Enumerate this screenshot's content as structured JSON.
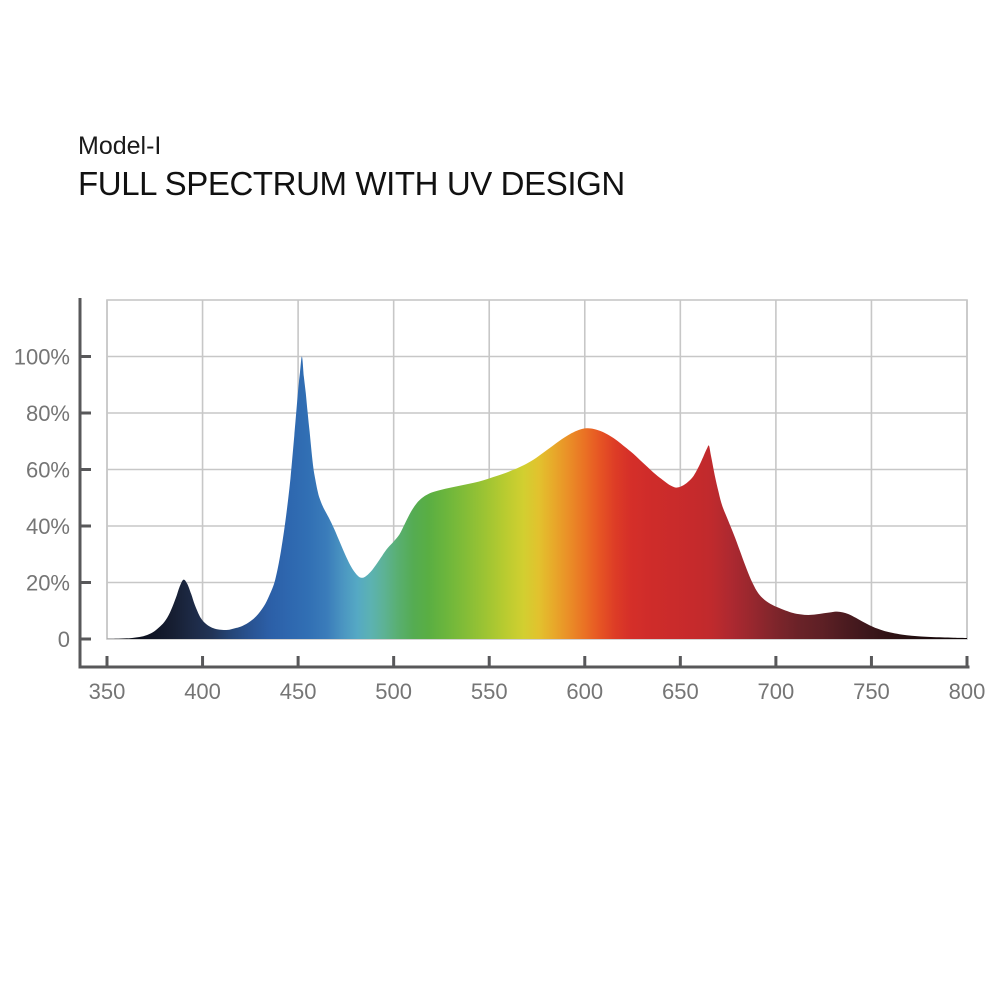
{
  "header": {
    "model": "Model-I",
    "title": "FULL SPECTRUM WITH UV DESIGN"
  },
  "chart_data": {
    "type": "area",
    "title": "FULL SPECTRUM WITH UV DESIGN",
    "subtitle_model": "Model-I",
    "xlabel": "",
    "ylabel": "",
    "grid": true,
    "legend": "none",
    "x_range": [
      350,
      800
    ],
    "y_range": [
      0,
      120
    ],
    "x_ticks": [
      350,
      400,
      450,
      500,
      550,
      600,
      650,
      700,
      750,
      800
    ],
    "x_tick_labels": [
      "350",
      "400",
      "450",
      "500",
      "550",
      "600",
      "650",
      "700",
      "750",
      "800"
    ],
    "y_tick_values": [
      0,
      20,
      40,
      60,
      80,
      100
    ],
    "y_tick_labels": [
      "0",
      "20%",
      "40%",
      "60%",
      "80%",
      "100%"
    ],
    "y_grid_values": [
      20,
      40,
      60,
      80,
      100
    ],
    "series": [
      {
        "name": "spectrum",
        "points": [
          [
            350,
            0.05
          ],
          [
            356,
            0.1
          ],
          [
            362,
            0.3
          ],
          [
            366,
            0.6
          ],
          [
            370,
            1.2
          ],
          [
            374,
            2.4
          ],
          [
            377,
            4
          ],
          [
            380,
            6
          ],
          [
            383,
            9.5
          ],
          [
            386,
            14.5
          ],
          [
            388,
            18.5
          ],
          [
            390,
            21
          ],
          [
            392,
            19.5
          ],
          [
            394,
            16
          ],
          [
            396,
            12
          ],
          [
            399,
            7.5
          ],
          [
            402,
            5.2
          ],
          [
            405,
            4
          ],
          [
            408,
            3.4
          ],
          [
            411,
            3.2
          ],
          [
            414,
            3.3
          ],
          [
            417,
            3.8
          ],
          [
            420,
            4.4
          ],
          [
            424,
            5.8
          ],
          [
            428,
            8
          ],
          [
            432,
            11.5
          ],
          [
            435,
            15.5
          ],
          [
            438,
            21
          ],
          [
            441,
            31
          ],
          [
            444,
            45
          ],
          [
            446,
            57
          ],
          [
            448,
            72
          ],
          [
            450,
            88
          ],
          [
            451,
            94.5
          ],
          [
            452,
            100
          ],
          [
            453,
            93
          ],
          [
            454,
            87
          ],
          [
            455,
            80
          ],
          [
            456,
            73.5
          ],
          [
            457,
            66.5
          ],
          [
            458,
            60.5
          ],
          [
            459,
            56.5
          ],
          [
            460,
            53
          ],
          [
            461,
            50.3
          ],
          [
            463,
            46.8
          ],
          [
            466,
            43
          ],
          [
            469,
            38.8
          ],
          [
            472,
            34
          ],
          [
            475,
            29.3
          ],
          [
            478,
            25.3
          ],
          [
            481,
            22.5
          ],
          [
            483,
            21.7
          ],
          [
            485,
            22
          ],
          [
            488,
            23.8
          ],
          [
            491,
            26.5
          ],
          [
            494,
            29.5
          ],
          [
            497,
            32.3
          ],
          [
            500,
            34.5
          ],
          [
            503,
            37
          ],
          [
            506,
            41
          ],
          [
            509,
            45
          ],
          [
            512,
            48
          ],
          [
            515,
            50
          ],
          [
            518,
            51.3
          ],
          [
            522,
            52.3
          ],
          [
            527,
            53.2
          ],
          [
            532,
            53.9
          ],
          [
            537,
            54.6
          ],
          [
            542,
            55.3
          ],
          [
            547,
            56.2
          ],
          [
            552,
            57.3
          ],
          [
            557,
            58.4
          ],
          [
            562,
            59.7
          ],
          [
            567,
            61.2
          ],
          [
            572,
            63
          ],
          [
            577,
            65.3
          ],
          [
            581,
            67.3
          ],
          [
            585,
            69.3
          ],
          [
            589,
            71.2
          ],
          [
            593,
            72.8
          ],
          [
            597,
            74
          ],
          [
            601,
            74.6
          ],
          [
            605,
            74.3
          ],
          [
            609,
            73.4
          ],
          [
            613,
            72
          ],
          [
            617,
            70.2
          ],
          [
            621,
            68
          ],
          [
            625,
            65.8
          ],
          [
            629,
            63.3
          ],
          [
            633,
            60.8
          ],
          [
            637,
            58.3
          ],
          [
            641,
            56.2
          ],
          [
            645,
            54.3
          ],
          [
            648,
            53.6
          ],
          [
            651,
            54.2
          ],
          [
            654,
            55.6
          ],
          [
            657,
            57.8
          ],
          [
            660,
            61.5
          ],
          [
            662,
            64.5
          ],
          [
            664,
            67.5
          ],
          [
            665,
            68.4
          ],
          [
            666,
            65
          ],
          [
            668,
            58
          ],
          [
            670,
            52
          ],
          [
            672,
            47
          ],
          [
            675,
            42
          ],
          [
            678,
            37
          ],
          [
            681,
            31.5
          ],
          [
            684,
            26
          ],
          [
            687,
            21
          ],
          [
            690,
            17
          ],
          [
            693,
            14.5
          ],
          [
            697,
            12.5
          ],
          [
            701,
            11.2
          ],
          [
            705,
            10.1
          ],
          [
            709,
            9.2
          ],
          [
            713,
            8.7
          ],
          [
            717,
            8.5
          ],
          [
            721,
            8.7
          ],
          [
            725,
            9.1
          ],
          [
            729,
            9.5
          ],
          [
            732,
            9.7
          ],
          [
            735,
            9.4
          ],
          [
            738,
            8.8
          ],
          [
            741,
            7.8
          ],
          [
            745,
            6.3
          ],
          [
            749,
            4.9
          ],
          [
            753,
            3.7
          ],
          [
            757,
            2.8
          ],
          [
            761,
            2.15
          ],
          [
            766,
            1.55
          ],
          [
            771,
            1.15
          ],
          [
            776,
            0.9
          ],
          [
            781,
            0.72
          ],
          [
            787,
            0.57
          ],
          [
            793,
            0.46
          ],
          [
            800,
            0.36
          ]
        ]
      }
    ],
    "gradient_stops": [
      [
        350,
        "#090a10"
      ],
      [
        370,
        "#0d1120"
      ],
      [
        385,
        "#171f33"
      ],
      [
        395,
        "#1d2a46"
      ],
      [
        405,
        "#213457"
      ],
      [
        415,
        "#254678"
      ],
      [
        425,
        "#295392"
      ],
      [
        435,
        "#2c5fa7"
      ],
      [
        445,
        "#2e67af"
      ],
      [
        455,
        "#316fb4"
      ],
      [
        465,
        "#3a7cba"
      ],
      [
        473,
        "#4a94c1"
      ],
      [
        481,
        "#55a9c4"
      ],
      [
        488,
        "#5cb2b2"
      ],
      [
        495,
        "#5db295"
      ],
      [
        502,
        "#59af72"
      ],
      [
        510,
        "#55ac53"
      ],
      [
        518,
        "#59ae43"
      ],
      [
        528,
        "#6db63c"
      ],
      [
        538,
        "#84bd37"
      ],
      [
        548,
        "#9dc433"
      ],
      [
        558,
        "#b8cb30"
      ],
      [
        568,
        "#d2cf30"
      ],
      [
        576,
        "#e2c22e"
      ],
      [
        584,
        "#e8a82a"
      ],
      [
        592,
        "#ea8d27"
      ],
      [
        600,
        "#ea7124"
      ],
      [
        608,
        "#e65424"
      ],
      [
        616,
        "#dd3c26"
      ],
      [
        624,
        "#d52f29"
      ],
      [
        634,
        "#cf2c2a"
      ],
      [
        646,
        "#ca2b2b"
      ],
      [
        658,
        "#c52a2c"
      ],
      [
        666,
        "#c02a2d"
      ],
      [
        676,
        "#ae2930"
      ],
      [
        688,
        "#97272e"
      ],
      [
        700,
        "#7e252b"
      ],
      [
        712,
        "#6a2228"
      ],
      [
        724,
        "#5e2025"
      ],
      [
        736,
        "#4c1b20"
      ],
      [
        748,
        "#3d171b"
      ],
      [
        760,
        "#2f1215"
      ],
      [
        772,
        "#230e10"
      ],
      [
        784,
        "#19090b"
      ],
      [
        800,
        "#0e0607"
      ]
    ],
    "colors": {
      "axis": "#58585a",
      "grid": "#c7c7c7",
      "tick_label": "#757575",
      "background": "#ffffff"
    }
  }
}
